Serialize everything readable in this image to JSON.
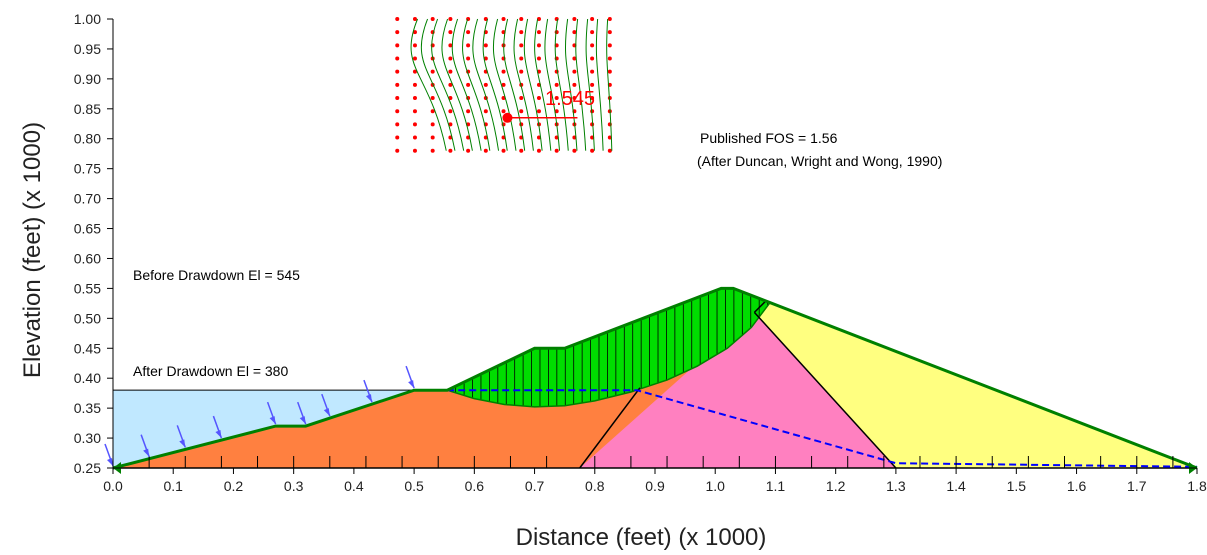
{
  "chart_data": {
    "type": "slope-stability-cross-section",
    "xlabel": "Distance (feet) (x  1000)",
    "ylabel": "Elevation (feet) (x  1000)",
    "xlim": [
      0,
      1.8
    ],
    "ylim": [
      0.25,
      1.0
    ],
    "x_ticks": [
      "0.0",
      "0.1",
      "0.2",
      "0.3",
      "0.4",
      "0.5",
      "0.6",
      "0.7",
      "0.8",
      "0.9",
      "1.0",
      "1.1",
      "1.2",
      "1.3",
      "1.4",
      "1.5",
      "1.6",
      "1.7",
      "1.8"
    ],
    "y_ticks": [
      "0.25",
      "0.30",
      "0.35",
      "0.40",
      "0.45",
      "0.50",
      "0.55",
      "0.60",
      "0.65",
      "0.70",
      "0.75",
      "0.80",
      "0.85",
      "0.90",
      "0.95",
      "1.00"
    ],
    "annotations": {
      "published_fos": "Published FOS = 1.56",
      "reference": "(After Duncan, Wright and Wong, 1990)",
      "before_drawdown": "Before Drawdown El = 545",
      "after_drawdown": "After Drawdown El = 380"
    },
    "critical_fos": "1.545",
    "materials": [
      {
        "name": "upstream-shell",
        "color": "#ff8040",
        "points": [
          [
            0,
            0.25
          ],
          [
            0.27,
            0.32
          ],
          [
            0.32,
            0.32
          ],
          [
            0.5,
            0.38
          ],
          [
            0.555,
            0.38
          ],
          [
            0.7,
            0.45
          ],
          [
            0.75,
            0.45
          ],
          [
            1.01,
            0.55
          ],
          [
            1.03,
            0.55
          ],
          [
            1.3,
            0.25
          ]
        ]
      },
      {
        "name": "core",
        "color": "#ff80c0",
        "points": [
          [
            0.775,
            0.25
          ],
          [
            1.065,
            0.51
          ],
          [
            1.3,
            0.25
          ]
        ]
      },
      {
        "name": "downstream-shell",
        "color": "#ffff80",
        "points": [
          [
            1.065,
            0.51
          ],
          [
            1.01,
            0.55
          ],
          [
            1.03,
            0.55
          ],
          [
            1.8,
            0.25
          ],
          [
            1.3,
            0.25
          ]
        ]
      },
      {
        "name": "reservoir",
        "color": "#c0e8ff",
        "points": [
          [
            0,
            0.38
          ],
          [
            0.5,
            0.38
          ],
          [
            0.32,
            0.32
          ],
          [
            0.27,
            0.32
          ],
          [
            0,
            0.25
          ]
        ]
      }
    ],
    "surface": [
      [
        0,
        0.25
      ],
      [
        0.27,
        0.32
      ],
      [
        0.32,
        0.32
      ],
      [
        0.5,
        0.38
      ],
      [
        0.555,
        0.38
      ],
      [
        0.7,
        0.45
      ],
      [
        0.75,
        0.45
      ],
      [
        1.01,
        0.55
      ],
      [
        1.03,
        0.55
      ],
      [
        1.8,
        0.25
      ]
    ],
    "slip_surface": [
      [
        0.555,
        0.38
      ],
      [
        0.6,
        0.366
      ],
      [
        0.65,
        0.356
      ],
      [
        0.7,
        0.352
      ],
      [
        0.75,
        0.354
      ],
      [
        0.8,
        0.362
      ],
      [
        0.86,
        0.377
      ],
      [
        0.92,
        0.397
      ],
      [
        0.97,
        0.42
      ],
      [
        1.02,
        0.45
      ],
      [
        1.06,
        0.485
      ],
      [
        1.09,
        0.525
      ]
    ],
    "phreatic_line": [
      [
        0.555,
        0.38
      ],
      [
        0.87,
        0.38
      ],
      [
        1.3,
        0.258
      ],
      [
        1.8,
        0.252
      ]
    ],
    "grid": {
      "x_start": 0.472,
      "x_end": 0.825,
      "y_start": 0.78,
      "y_end": 1.0,
      "cols": 13,
      "rows": 11,
      "color": "#ff0000"
    },
    "critical_center": [
      0.655,
      0.835
    ]
  }
}
